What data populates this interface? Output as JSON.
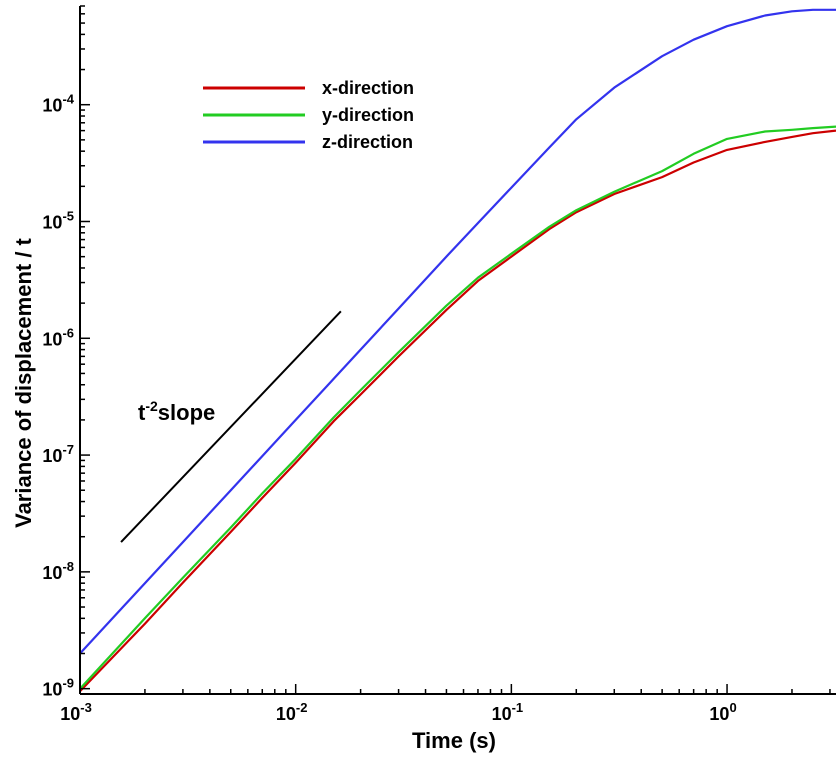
{
  "chart_data": {
    "type": "line",
    "xlabel": "Time (s)",
    "ylabel": "Variance of displacement / t",
    "x_scale": "log",
    "y_scale": "log",
    "xlim": [
      0.001,
      3.2
    ],
    "ylim": [
      9e-10,
      0.0007
    ],
    "x_ticks": [
      {
        "value": 0.001,
        "base": "10",
        "exp": "-3"
      },
      {
        "value": 0.01,
        "base": "10",
        "exp": "-2"
      },
      {
        "value": 0.1,
        "base": "10",
        "exp": "-1"
      },
      {
        "value": 1,
        "base": "10",
        "exp": "0"
      }
    ],
    "y_ticks": [
      {
        "value": 1e-09,
        "base": "10",
        "exp": "-9"
      },
      {
        "value": 1e-08,
        "base": "10",
        "exp": "-8"
      },
      {
        "value": 1e-07,
        "base": "10",
        "exp": "-7"
      },
      {
        "value": 1e-06,
        "base": "10",
        "exp": "-6"
      },
      {
        "value": 1e-05,
        "base": "10",
        "exp": "-5"
      },
      {
        "value": 0.0001,
        "base": "10",
        "exp": "-4"
      }
    ],
    "legend_position": "top-left",
    "series": [
      {
        "name": "x-direction",
        "color": "#cc0000",
        "points": [
          [
            0.001,
            9.5e-10
          ],
          [
            0.002,
            3.6e-09
          ],
          [
            0.003,
            8.1e-09
          ],
          [
            0.005,
            2.2e-08
          ],
          [
            0.007,
            4.3e-08
          ],
          [
            0.01,
            8.6e-08
          ],
          [
            0.015,
            1.95e-07
          ],
          [
            0.02,
            3.3e-07
          ],
          [
            0.03,
            7e-07
          ],
          [
            0.05,
            1.75e-06
          ],
          [
            0.07,
            3.1e-06
          ],
          [
            0.1,
            5e-06
          ],
          [
            0.15,
            8.6e-06
          ],
          [
            0.2,
            1.2e-05
          ],
          [
            0.3,
            1.72e-05
          ],
          [
            0.5,
            2.4e-05
          ],
          [
            0.7,
            3.2e-05
          ],
          [
            1.0,
            4.1e-05
          ],
          [
            1.5,
            4.8e-05
          ],
          [
            2.0,
            5.3e-05
          ],
          [
            2.5,
            5.7e-05
          ],
          [
            3.2,
            6e-05
          ]
        ]
      },
      {
        "name": "y-direction",
        "color": "#22cc22",
        "points": [
          [
            0.001,
            1e-09
          ],
          [
            0.002,
            4e-09
          ],
          [
            0.003,
            8.9e-09
          ],
          [
            0.005,
            2.4e-08
          ],
          [
            0.007,
            4.7e-08
          ],
          [
            0.01,
            9.3e-08
          ],
          [
            0.015,
            2.1e-07
          ],
          [
            0.02,
            3.6e-07
          ],
          [
            0.03,
            7.6e-07
          ],
          [
            0.05,
            1.9e-06
          ],
          [
            0.07,
            3.3e-06
          ],
          [
            0.1,
            5.3e-06
          ],
          [
            0.15,
            9e-06
          ],
          [
            0.2,
            1.25e-05
          ],
          [
            0.3,
            1.8e-05
          ],
          [
            0.5,
            2.7e-05
          ],
          [
            0.7,
            3.8e-05
          ],
          [
            1.0,
            5.1e-05
          ],
          [
            1.5,
            5.9e-05
          ],
          [
            2.0,
            6.1e-05
          ],
          [
            2.5,
            6.3e-05
          ],
          [
            3.2,
            6.5e-05
          ]
        ]
      },
      {
        "name": "z-direction",
        "color": "#3333ee",
        "points": [
          [
            0.001,
            2e-09
          ],
          [
            0.002,
            8e-09
          ],
          [
            0.003,
            1.8e-08
          ],
          [
            0.005,
            5e-08
          ],
          [
            0.007,
            9.8e-08
          ],
          [
            0.01,
            2e-07
          ],
          [
            0.015,
            4.5e-07
          ],
          [
            0.02,
            8e-07
          ],
          [
            0.03,
            1.8e-06
          ],
          [
            0.05,
            5e-06
          ],
          [
            0.07,
            9.7e-06
          ],
          [
            0.1,
            1.95e-05
          ],
          [
            0.15,
            4.3e-05
          ],
          [
            0.2,
            7.5e-05
          ],
          [
            0.3,
            0.00014
          ],
          [
            0.5,
            0.00026
          ],
          [
            0.7,
            0.00036
          ],
          [
            1.0,
            0.00047
          ],
          [
            1.5,
            0.00058
          ],
          [
            2.0,
            0.00063
          ],
          [
            2.5,
            0.00065
          ],
          [
            3.2,
            0.00065
          ]
        ]
      }
    ],
    "annotations": [
      {
        "label": "slope",
        "base": "t",
        "exp": "-2",
        "line": [
          [
            0.00155,
            1.8e-08
          ],
          [
            0.0162,
            1.7e-06
          ]
        ]
      }
    ]
  }
}
